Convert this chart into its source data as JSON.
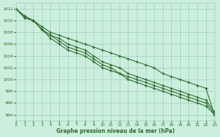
{
  "x": [
    0,
    1,
    2,
    3,
    4,
    5,
    6,
    7,
    8,
    9,
    10,
    11,
    12,
    13,
    14,
    15,
    16,
    17,
    18,
    19,
    20,
    21,
    22,
    23
  ],
  "lines": [
    [
      1012,
      1010.5,
      1010,
      1008.5,
      1007,
      1006,
      1005,
      1004.5,
      1004,
      1003,
      1002,
      1001.5,
      1001,
      1000,
      999.5,
      999,
      998.5,
      998,
      997.5,
      997,
      996.5,
      996,
      995.5,
      994
    ],
    [
      1012,
      1010.5,
      1010,
      1008.5,
      1007.5,
      1006.5,
      1005.5,
      1005,
      1004.5,
      1003.5,
      1002.5,
      1002,
      1001,
      1000.5,
      1000,
      999.5,
      999,
      998.5,
      998,
      997.5,
      997,
      996.5,
      996,
      994.2
    ],
    [
      1012,
      1010.5,
      1010,
      1008.5,
      1007.5,
      1007,
      1006,
      1005.5,
      1005,
      1004,
      1003,
      1002.5,
      1002,
      1001,
      1000.5,
      1000,
      999.5,
      999,
      998.5,
      998,
      997.5,
      997,
      996.5,
      994.5
    ],
    [
      1012,
      1010.8,
      1010,
      1009,
      1008,
      1007.5,
      1007,
      1006.5,
      1006,
      1005.5,
      1005,
      1004.5,
      1004,
      1003.5,
      1003,
      1002.5,
      1002,
      1001,
      1000.5,
      1000,
      999.5,
      999,
      998.5,
      994
    ]
  ],
  "line_colors": [
    "#2d6a2d",
    "#2d6a2d",
    "#2d6a2d",
    "#2d6a2d"
  ],
  "background_color": "#cceedd",
  "grid_color": "#99ccbb",
  "text_color": "#2d6a2d",
  "xlabel": "Graphe pression niveau de la mer (hPa)",
  "ylim": [
    993,
    1013
  ],
  "xlim": [
    0,
    23
  ],
  "yticks": [
    994,
    996,
    998,
    1000,
    1002,
    1004,
    1006,
    1008,
    1010,
    1012
  ],
  "xticks": [
    0,
    1,
    2,
    3,
    4,
    5,
    6,
    7,
    8,
    9,
    10,
    11,
    12,
    13,
    14,
    15,
    16,
    17,
    18,
    19,
    20,
    21,
    22,
    23
  ]
}
